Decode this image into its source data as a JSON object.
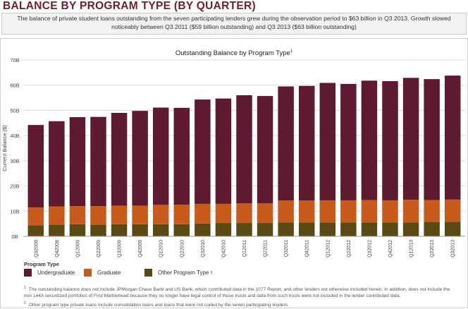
{
  "heading": "BALANCE BY PROGRAM TYPE (BY QUARTER)",
  "summary": "The balance of private student loans outstanding from the seven participating lenders grew during the observation period to $63 billion in Q3 2013.  Growth slowed noticeably between Q3 2011 ($59 billion outstanding) and Q3 2013 ($63 billion outstanding)",
  "chart_title": "Outstanding Balance by Program Type",
  "chart_title_note": "1",
  "legend": {
    "title": "Program Type",
    "items": [
      {
        "label": "Undergraduate",
        "note": ""
      },
      {
        "label": "Graduate",
        "note": ""
      },
      {
        "label": "Other Program Type",
        "note": "2"
      }
    ]
  },
  "footnotes": [
    {
      "mark": "1",
      "text": "The outstanding balance does not include JPMorgan Chase Bank and US Bank, which contributed data in the 1077 Report, and other lenders not otherwise included herein.  In addition, does not include the non 144A securitized portfolios of First Marblehead because they no longer have legal control of those trusts and data from such trusts were not included in the lender contributed data."
    },
    {
      "mark": "2",
      "text": "Other program type private loans include consolidation loans and loans that were not coded by the seven participating lenders."
    }
  ],
  "colors": {
    "undergraduate": "#5e1a2e",
    "graduate": "#c85a1c",
    "other": "#5a4a12",
    "grid": "#d9d9d9",
    "axis_text": "#444444"
  },
  "chart_data": {
    "type": "bar",
    "stacked": true,
    "title": "Outstanding Balance by Program Type",
    "ylabel": "Current Balance ($)",
    "xlabel": "",
    "ylim": [
      0,
      70
    ],
    "yticks": [
      0,
      10,
      20,
      30,
      40,
      50,
      60,
      70
    ],
    "ytick_labels": [
      "0B",
      "10B",
      "20B",
      "30B",
      "40B",
      "50B",
      "60B",
      "70B"
    ],
    "grid": true,
    "legend_position": "bottom-left",
    "categories": [
      "Q32008",
      "Q42008",
      "Q12009",
      "Q22009",
      "Q32009",
      "Q42009",
      "Q12010",
      "Q22010",
      "Q32010",
      "Q42010",
      "Q12011",
      "Q22011",
      "Q32011",
      "Q42011",
      "Q12012",
      "Q22012",
      "Q32012",
      "Q42012",
      "Q12013",
      "Q22013",
      "Q32013"
    ],
    "series": [
      {
        "name": "Other Program Type",
        "values": [
          4.4,
          4.6,
          4.8,
          4.6,
          4.8,
          4.8,
          4.8,
          4.8,
          5.1,
          5.3,
          5.3,
          5.3,
          5.5,
          5.5,
          5.5,
          5.5,
          5.5,
          5.5,
          5.5,
          5.6,
          5.8
        ]
      },
      {
        "name": "Graduate",
        "values": [
          7.1,
          7.3,
          7.2,
          7.4,
          7.4,
          7.4,
          7.7,
          7.8,
          7.8,
          7.6,
          7.8,
          7.8,
          8.7,
          8.7,
          8.8,
          8.8,
          8.9,
          8.8,
          9.0,
          8.8,
          8.8
        ]
      },
      {
        "name": "Undergraduate",
        "values": [
          32.7,
          33.8,
          35.3,
          35.4,
          36.8,
          37.6,
          38.6,
          38.4,
          41.4,
          41.8,
          42.9,
          42.6,
          45.3,
          45.5,
          46.6,
          46.2,
          47.4,
          47.3,
          48.4,
          48.0,
          49.2
        ]
      }
    ]
  }
}
